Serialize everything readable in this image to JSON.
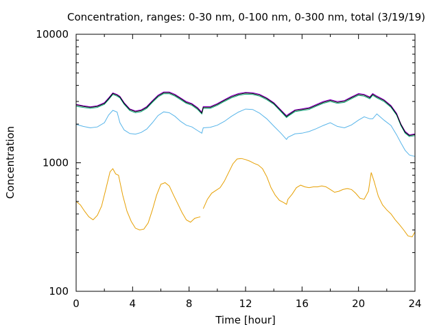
{
  "chart_data": {
    "type": "line",
    "title": "Concentration, ranges: 0-30 nm, 0-100 nm, 0-300 nm, total (3/19/19)",
    "xlabel": "Time [hour]",
    "ylabel": "Concentration",
    "xlim": [
      0,
      24
    ],
    "ylim": [
      100,
      10000
    ],
    "yscale": "log",
    "grid": false,
    "legend": "none",
    "xticks": [
      "0",
      "4",
      "8",
      "12",
      "16",
      "20",
      "24"
    ],
    "yticks": [
      "100",
      "1000",
      "10000"
    ],
    "series": [
      {
        "color": "#e69f00",
        "x": [
          0,
          0.3,
          0.6,
          0.9,
          1.2,
          1.5,
          1.8,
          2.1,
          2.4,
          2.6,
          2.8,
          3.0,
          3.3,
          3.6,
          3.9,
          4.2,
          4.5,
          4.8,
          5.1,
          5.4,
          5.7,
          6.0,
          6.3,
          6.6,
          6.9,
          7.2,
          7.5,
          7.8,
          8.1,
          8.4,
          8.8,
          9.0,
          9.3,
          9.6,
          9.9,
          10.2,
          10.5,
          10.8,
          11.1,
          11.4,
          11.7,
          12.0,
          12.3,
          12.6,
          12.9,
          13.2,
          13.5,
          13.8,
          14.1,
          14.4,
          14.7,
          14.9,
          15.0,
          15.3,
          15.6,
          15.9,
          16.2,
          16.5,
          16.8,
          17.1,
          17.4,
          17.7,
          18.0,
          18.3,
          18.6,
          18.9,
          19.2,
          19.5,
          19.8,
          20.1,
          20.4,
          20.7,
          20.9,
          21.1,
          21.4,
          21.7,
          22.0,
          22.3,
          22.6,
          22.9,
          23.2,
          23.5,
          23.8,
          24.0
        ],
        "y": [
          500,
          470,
          420,
          380,
          360,
          390,
          460,
          620,
          850,
          900,
          820,
          800,
          560,
          420,
          350,
          310,
          300,
          305,
          340,
          430,
          560,
          680,
          700,
          660,
          560,
          480,
          410,
          360,
          345,
          370,
          380,
          440,
          520,
          580,
          610,
          640,
          720,
          840,
          980,
          1070,
          1080,
          1060,
          1030,
          990,
          960,
          900,
          780,
          640,
          560,
          510,
          490,
          475,
          520,
          570,
          640,
          670,
          650,
          640,
          650,
          650,
          660,
          650,
          620,
          590,
          600,
          620,
          630,
          620,
          580,
          530,
          520,
          600,
          840,
          720,
          550,
          470,
          430,
          400,
          360,
          330,
          300,
          270,
          265,
          290
        ]
      },
      {
        "color": "#56b4e9",
        "x": [
          0,
          0.5,
          1.0,
          1.5,
          2.0,
          2.3,
          2.6,
          2.9,
          3.1,
          3.4,
          3.8,
          4.2,
          4.6,
          5.0,
          5.4,
          5.8,
          6.2,
          6.6,
          7.0,
          7.4,
          7.8,
          8.2,
          8.6,
          8.9,
          9.0,
          9.5,
          10.0,
          10.5,
          11.0,
          11.5,
          12.0,
          12.5,
          13.0,
          13.5,
          14.0,
          14.5,
          14.9,
          15.0,
          15.5,
          16.0,
          16.5,
          17.0,
          17.5,
          18.0,
          18.5,
          19.0,
          19.5,
          20.0,
          20.4,
          20.8,
          21.0,
          21.3,
          21.8,
          22.3,
          22.7,
          23.0,
          23.3,
          23.6,
          24.0
        ],
        "y": [
          1990,
          1920,
          1870,
          1900,
          2050,
          2350,
          2560,
          2480,
          2050,
          1800,
          1690,
          1670,
          1720,
          1830,
          2050,
          2330,
          2490,
          2450,
          2300,
          2100,
          1960,
          1900,
          1780,
          1700,
          1870,
          1890,
          1960,
          2100,
          2300,
          2480,
          2620,
          2600,
          2430,
          2200,
          1930,
          1700,
          1520,
          1580,
          1680,
          1700,
          1750,
          1840,
          1950,
          2050,
          1920,
          1870,
          1970,
          2150,
          2280,
          2200,
          2200,
          2400,
          2150,
          1950,
          1650,
          1430,
          1250,
          1150,
          1120
        ]
      },
      {
        "color": "#009e73",
        "x": [
          0,
          0.5,
          1.0,
          1.5,
          2.0,
          2.3,
          2.6,
          2.9,
          3.1,
          3.4,
          3.8,
          4.2,
          4.6,
          5.0,
          5.4,
          5.8,
          6.2,
          6.6,
          7.0,
          7.4,
          7.8,
          8.2,
          8.6,
          8.9,
          9.0,
          9.5,
          10.0,
          10.5,
          11.0,
          11.5,
          12.0,
          12.5,
          13.0,
          13.5,
          14.0,
          14.5,
          14.9,
          15.0,
          15.5,
          16.0,
          16.5,
          17.0,
          17.5,
          18.0,
          18.5,
          19.0,
          19.5,
          20.0,
          20.4,
          20.8,
          21.0,
          21.3,
          21.8,
          22.3,
          22.7,
          23.0,
          23.3,
          23.6,
          24.0
        ],
        "y": [
          2750,
          2700,
          2650,
          2700,
          2850,
          3100,
          3400,
          3300,
          3200,
          2850,
          2550,
          2450,
          2500,
          2650,
          2950,
          3250,
          3450,
          3450,
          3300,
          3100,
          2900,
          2800,
          2600,
          2400,
          2650,
          2650,
          2800,
          3000,
          3200,
          3350,
          3420,
          3400,
          3300,
          3100,
          2850,
          2500,
          2250,
          2300,
          2500,
          2550,
          2600,
          2750,
          2900,
          3000,
          2900,
          2950,
          3150,
          3350,
          3300,
          3150,
          3350,
          3200,
          3000,
          2700,
          2350,
          1950,
          1700,
          1600,
          1630
        ]
      },
      {
        "color": "#9400d3",
        "x": [
          0,
          0.5,
          1.0,
          1.5,
          2.0,
          2.3,
          2.6,
          2.9,
          3.1,
          3.4,
          3.8,
          4.2,
          4.6,
          5.0,
          5.4,
          5.8,
          6.2,
          6.6,
          7.0,
          7.4,
          7.8,
          8.2,
          8.6,
          8.9,
          9.0,
          9.5,
          10.0,
          10.5,
          11.0,
          11.5,
          12.0,
          12.5,
          13.0,
          13.5,
          14.0,
          14.5,
          14.9,
          15.0,
          15.5,
          16.0,
          16.5,
          17.0,
          17.5,
          18.0,
          18.5,
          19.0,
          19.5,
          20.0,
          20.4,
          20.8,
          21.0,
          21.3,
          21.8,
          22.3,
          22.7,
          23.0,
          23.3,
          23.6,
          24.0
        ],
        "y": [
          2850,
          2780,
          2730,
          2780,
          2940,
          3200,
          3500,
          3400,
          3290,
          2940,
          2630,
          2530,
          2580,
          2740,
          3050,
          3360,
          3560,
          3560,
          3410,
          3200,
          3000,
          2890,
          2690,
          2480,
          2740,
          2740,
          2890,
          3100,
          3310,
          3460,
          3530,
          3510,
          3410,
          3200,
          2940,
          2580,
          2330,
          2380,
          2580,
          2630,
          2690,
          2840,
          3000,
          3100,
          3000,
          3050,
          3260,
          3460,
          3410,
          3260,
          3460,
          3310,
          3100,
          2790,
          2430,
          2010,
          1760,
          1650,
          1680
        ]
      },
      {
        "color": "#000000",
        "x": [
          0,
          0.5,
          1.0,
          1.5,
          2.0,
          2.3,
          2.6,
          2.9,
          3.1,
          3.4,
          3.8,
          4.2,
          4.6,
          5.0,
          5.4,
          5.8,
          6.2,
          6.6,
          7.0,
          7.4,
          7.8,
          8.2,
          8.6,
          8.9,
          9.0,
          9.5,
          10.0,
          10.5,
          11.0,
          11.5,
          12.0,
          12.5,
          13.0,
          13.5,
          14.0,
          14.5,
          14.9,
          15.0,
          15.5,
          16.0,
          16.5,
          17.0,
          17.5,
          18.0,
          18.5,
          19.0,
          19.5,
          20.0,
          20.4,
          20.8,
          21.0,
          21.3,
          21.8,
          22.3,
          22.7,
          23.0,
          23.3,
          23.6,
          24.0
        ],
        "y": [
          2820,
          2750,
          2700,
          2750,
          2900,
          3150,
          3460,
          3360,
          3250,
          2900,
          2600,
          2500,
          2550,
          2700,
          3010,
          3310,
          3510,
          3510,
          3360,
          3160,
          2950,
          2850,
          2650,
          2440,
          2700,
          2700,
          2850,
          3060,
          3260,
          3410,
          3490,
          3460,
          3360,
          3160,
          2900,
          2550,
          2290,
          2340,
          2550,
          2600,
          2650,
          2800,
          2950,
          3060,
          2950,
          3010,
          3210,
          3410,
          3360,
          3210,
          3410,
          3260,
          3060,
          2750,
          2390,
          1990,
          1730,
          1630,
          1660
        ]
      }
    ]
  }
}
